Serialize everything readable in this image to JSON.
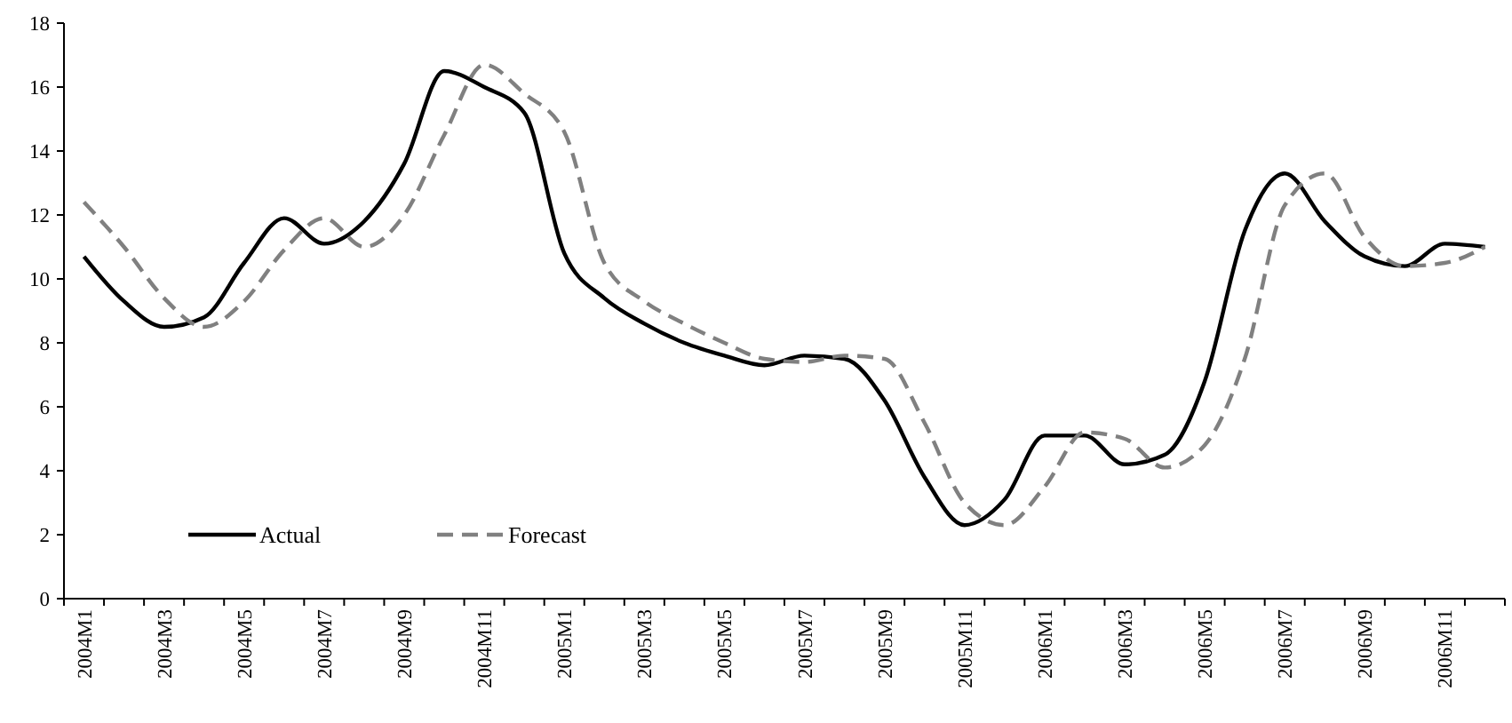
{
  "chart_data": {
    "type": "line",
    "categories": [
      "2004M1",
      null,
      "2004M3",
      null,
      "2004M5",
      null,
      "2004M7",
      null,
      "2004M9",
      null,
      "2004M11",
      null,
      "2005M1",
      null,
      "2005M3",
      null,
      "2005M5",
      null,
      "2005M7",
      null,
      "2005M9",
      null,
      "2005M11",
      null,
      "2006M1",
      null,
      "2006M3",
      null,
      "2006M5",
      null,
      "2006M7",
      null,
      "2006M9",
      null,
      "2006M11",
      null
    ],
    "series": [
      {
        "name": "Actual",
        "color": "#000000",
        "line_style": "solid",
        "values": [
          10.7,
          9.3,
          8.5,
          8.8,
          10.5,
          11.9,
          11.1,
          11.8,
          13.6,
          16.5,
          16.0,
          15.2,
          10.8,
          9.4,
          8.6,
          8.0,
          7.6,
          7.3,
          7.6,
          7.5,
          6.2,
          3.8,
          2.3,
          3.1,
          5.1,
          5.1,
          4.2,
          4.5,
          6.8,
          11.5,
          13.3,
          11.8,
          10.7,
          10.4,
          11.1,
          11.0
        ]
      },
      {
        "name": "Forecast",
        "color": "#808080",
        "line_style": "dashed",
        "values": [
          12.4,
          11.0,
          9.4,
          8.5,
          9.3,
          10.9,
          11.9,
          11.0,
          12.0,
          14.5,
          16.7,
          15.8,
          14.6,
          10.5,
          9.3,
          8.6,
          8.0,
          7.5,
          7.4,
          7.6,
          7.5,
          5.5,
          3.0,
          2.3,
          3.5,
          5.2,
          5.0,
          4.1,
          4.8,
          7.5,
          12.3,
          13.3,
          11.3,
          10.4,
          10.5,
          11.0
        ]
      }
    ],
    "ylim": [
      0,
      18
    ],
    "yticks": [
      0,
      2,
      4,
      6,
      8,
      10,
      12,
      14,
      16,
      18
    ],
    "grid": false,
    "legend": "bottom left"
  }
}
